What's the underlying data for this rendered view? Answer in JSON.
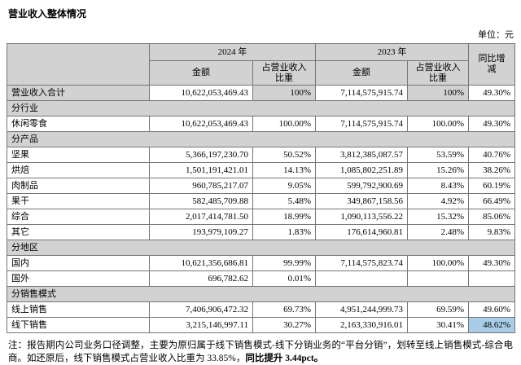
{
  "page": {
    "title": "营业收入整体情况",
    "unit_label": "单位：元"
  },
  "table": {
    "header": {
      "year_2024": "2024 年",
      "year_2023": "2023 年",
      "amount": "金额",
      "pct": "占营业收入\n比重",
      "yoy": "同比增\n减"
    },
    "rows": [
      {
        "type": "data",
        "label": "营业收入合计",
        "a24": "10,622,053,469.43",
        "p24": "100%",
        "a23": "7,114,575,915.74",
        "p23": "100%",
        "yoy": "49.30%",
        "shaded": true
      },
      {
        "type": "section",
        "label": "分行业"
      },
      {
        "type": "data",
        "label": "休闲零食",
        "a24": "10,622,053,469.43",
        "p24": "100.00%",
        "a23": "7,114,575,915.74",
        "p23": "100.00%",
        "yoy": "49.30%"
      },
      {
        "type": "section",
        "label": "分产品"
      },
      {
        "type": "data",
        "label": "坚果",
        "a24": "5,366,197,230.70",
        "p24": "50.52%",
        "a23": "3,812,385,087.57",
        "p23": "53.59%",
        "yoy": "40.76%"
      },
      {
        "type": "data",
        "label": "烘焙",
        "a24": "1,501,191,421.01",
        "p24": "14.13%",
        "a23": "1,085,802,251.89",
        "p23": "15.26%",
        "yoy": "38.26%"
      },
      {
        "type": "data",
        "label": "肉制品",
        "a24": "960,785,217.07",
        "p24": "9.05%",
        "a23": "599,792,900.69",
        "p23": "8.43%",
        "yoy": "60.19%"
      },
      {
        "type": "data",
        "label": "果干",
        "a24": "582,485,709.88",
        "p24": "5.48%",
        "a23": "349,867,158.56",
        "p23": "4.92%",
        "yoy": "66.49%"
      },
      {
        "type": "data",
        "label": "综合",
        "a24": "2,017,414,781.50",
        "p24": "18.99%",
        "a23": "1,090,113,556.22",
        "p23": "15.32%",
        "yoy": "85.06%"
      },
      {
        "type": "data",
        "label": "其它",
        "a24": "193,979,109.27",
        "p24": "1.83%",
        "a23": "176,614,960.81",
        "p23": "2.48%",
        "yoy": "9.83%"
      },
      {
        "type": "section",
        "label": "分地区"
      },
      {
        "type": "data",
        "label": "国内",
        "a24": "10,621,356,686.81",
        "p24": "99.99%",
        "a23": "7,114,575,823.74",
        "p23": "100.00%",
        "yoy": "49.30%"
      },
      {
        "type": "data",
        "label": "国外",
        "a24": "696,782.62",
        "p24": "0.01%",
        "a23": "",
        "p23": "",
        "yoy": ""
      },
      {
        "type": "section",
        "label": "分销售模式"
      },
      {
        "type": "data",
        "label": "线上销售",
        "a24": "7,406,906,472.32",
        "p24": "69.73%",
        "a23": "4,951,244,999.73",
        "p23": "69.59%",
        "yoy": "49.60%"
      },
      {
        "type": "data",
        "label": "线下销售",
        "a24": "3,215,146,997.11",
        "p24": "30.27%",
        "a23": "2,163,330,916.01",
        "p23": "30.41%",
        "yoy": "48.62%",
        "highlight_yoy": true
      }
    ]
  },
  "note": {
    "text": "注：报告期内公司业务口径调整，主要为原归属于线下销售模式-线下分销业务的“平台分销”，划转至线上销售模式-综合电商。如还原后，线下销售模式占营业收入比重为 33.85%，",
    "bold": "同比提升 3.44pct。"
  },
  "colors": {
    "header_bg": "#d2d2d2",
    "highlight_bg": "#a9cde8",
    "border": "#757575"
  }
}
